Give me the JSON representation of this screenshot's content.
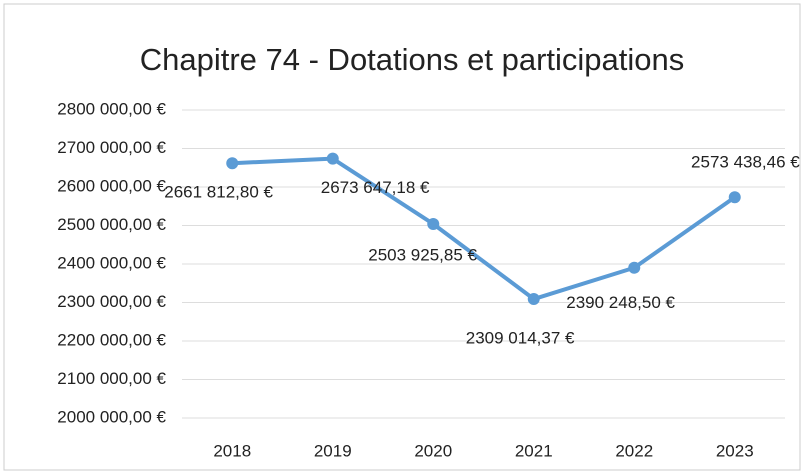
{
  "chart_data": {
    "type": "line",
    "title": "Chapitre 74 - Dotations et participations",
    "categories": [
      "2018",
      "2019",
      "2020",
      "2021",
      "2022",
      "2023"
    ],
    "series": [
      {
        "name": "Chapitre 74",
        "color": "#5b9bd5",
        "values": [
          2661812.8,
          2673647.18,
          2503925.85,
          2309014.37,
          2390248.5,
          2573438.46
        ],
        "value_labels": [
          "2661 812,80 €",
          "2673 647,18 €",
          "2503 925,85 €",
          "2309 014,37 €",
          "2390 248,50 €",
          "2573 438,46 €"
        ]
      }
    ],
    "ylim": [
      2000000,
      2800000
    ],
    "yticks": [
      {
        "value": 2000000,
        "label": "2000 000,00 €"
      },
      {
        "value": 2100000,
        "label": "2100 000,00 €"
      },
      {
        "value": 2200000,
        "label": "2200 000,00 €"
      },
      {
        "value": 2300000,
        "label": "2300 000,00 €"
      },
      {
        "value": 2400000,
        "label": "2400 000,00 €"
      },
      {
        "value": 2500000,
        "label": "2500 000,00 €"
      },
      {
        "value": 2600000,
        "label": "2600 000,00 €"
      },
      {
        "value": 2700000,
        "label": "2700 000,00 €"
      },
      {
        "value": 2800000,
        "label": "2800 000,00 €"
      }
    ],
    "grid": true
  }
}
